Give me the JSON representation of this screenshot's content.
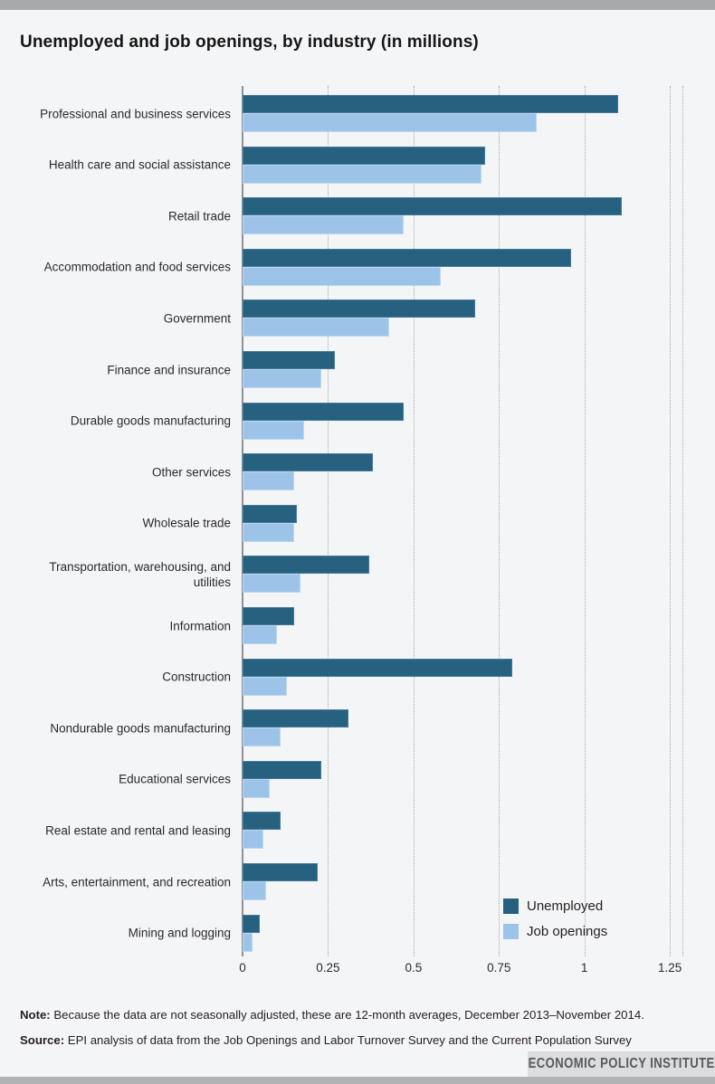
{
  "page": {
    "title": "Unemployed and job openings, by industry (in millions)",
    "note_label": "Note:",
    "note_text": " Because the data are not seasonally adjusted, these are 12-month averages, December 2013–November 2014.",
    "source_label": "Source:",
    "source_text": " EPI analysis of data from the Job Openings and Labor Turnover Survey and the Current Population Survey",
    "branding": "ECONOMIC POLICY INSTITUTE"
  },
  "colors": {
    "unemployed": "#26617f",
    "job_openings": "#9cc4e8",
    "background": "#f4f5f7",
    "top_bar": "#a7a9ac",
    "bottom_bar": "#b1b3b6",
    "branding_bg": "#dcddde",
    "branding_text": "#58595b",
    "gridline": "#a7a9ac"
  },
  "chart_data": {
    "type": "bar",
    "orientation": "horizontal",
    "title": "Unemployed and job openings, by industry (in millions)",
    "categories": [
      "Professional and business services",
      "Health care and social assistance",
      "Retail trade",
      "Accommodation and food services",
      "Government",
      "Finance and insurance",
      "Durable goods manufacturing",
      "Other services",
      "Wholesale trade",
      "Transportation, warehousing, and utilities",
      "Information",
      "Construction",
      "Nondurable goods manufacturing",
      "Educational services",
      "Real estate and rental and leasing",
      "Arts, entertainment, and recreation",
      "Mining and logging"
    ],
    "series": [
      {
        "name": "Unemployed",
        "color": "#26617f",
        "values": [
          1.1,
          0.71,
          1.11,
          0.96,
          0.68,
          0.27,
          0.47,
          0.38,
          0.16,
          0.37,
          0.15,
          0.79,
          0.31,
          0.23,
          0.11,
          0.22,
          0.05
        ]
      },
      {
        "name": "Job openings",
        "color": "#9cc4e8",
        "values": [
          0.86,
          0.7,
          0.47,
          0.58,
          0.43,
          0.23,
          0.18,
          0.15,
          0.15,
          0.17,
          0.1,
          0.13,
          0.11,
          0.08,
          0.06,
          0.07,
          0.03
        ]
      }
    ],
    "xlim": [
      0,
      1.29
    ],
    "x_ticks": [
      0,
      0.25,
      0.5,
      0.75,
      1,
      1.25
    ],
    "x_tick_labels": [
      "0",
      "0.25",
      "0.5",
      "0.75",
      "1",
      "1.25"
    ],
    "grid": "dotted-vertical",
    "legend_position": "inside-bottom-right",
    "xlabel": "",
    "ylabel": ""
  }
}
